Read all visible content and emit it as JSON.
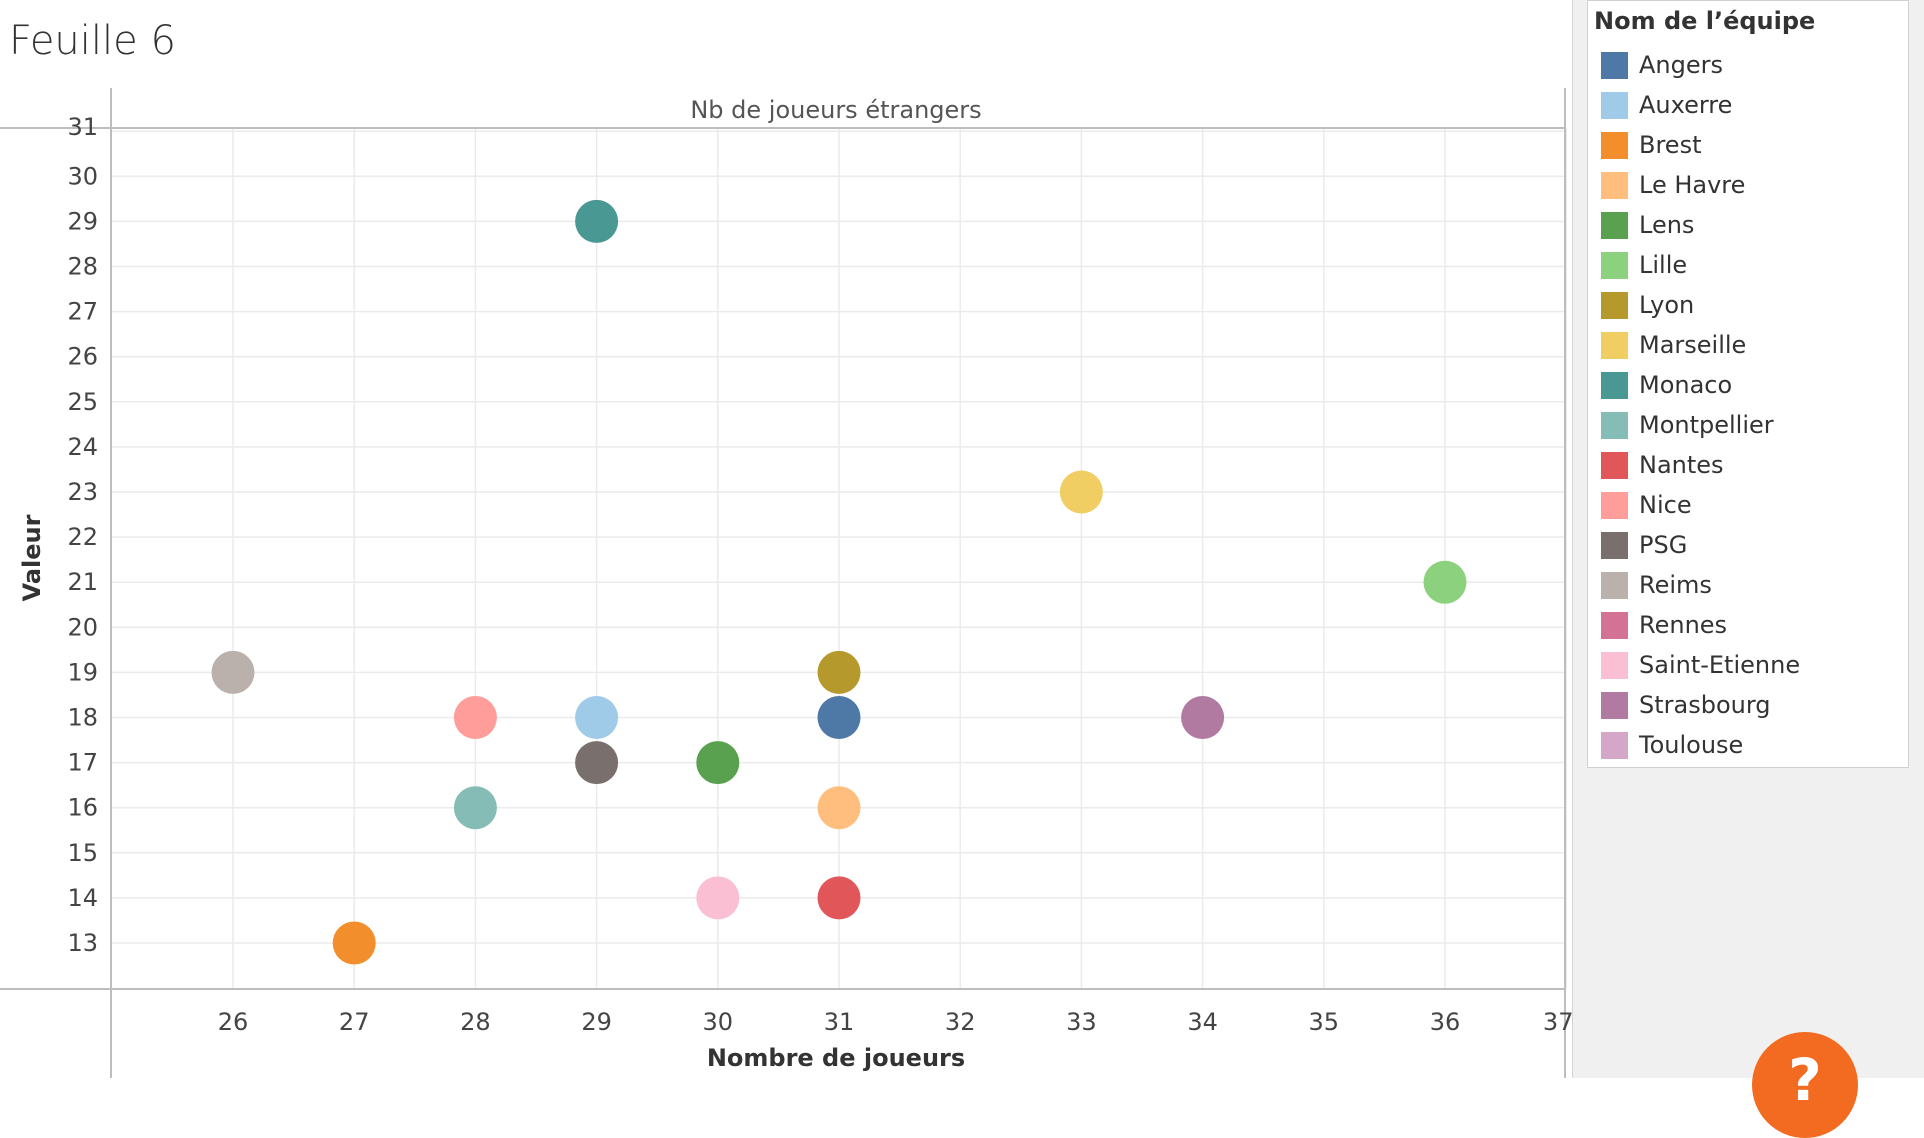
{
  "sheet": {
    "title": "Feuille 6"
  },
  "help": {
    "label": "?"
  },
  "legend": {
    "title": "Nom de l’équipe",
    "items": [
      {
        "label": "Angers",
        "color": "#4e79a7"
      },
      {
        "label": "Auxerre",
        "color": "#a0cbe8"
      },
      {
        "label": "Brest",
        "color": "#f28e2b"
      },
      {
        "label": "Le Havre",
        "color": "#ffbe7d"
      },
      {
        "label": "Lens",
        "color": "#59a14f"
      },
      {
        "label": "Lille",
        "color": "#8cd17d"
      },
      {
        "label": "Lyon",
        "color": "#b6992d"
      },
      {
        "label": "Marseille",
        "color": "#f1ce63"
      },
      {
        "label": "Monaco",
        "color": "#499894"
      },
      {
        "label": "Montpellier",
        "color": "#86bcb6"
      },
      {
        "label": "Nantes",
        "color": "#e15759"
      },
      {
        "label": "Nice",
        "color": "#ff9d9a"
      },
      {
        "label": "PSG",
        "color": "#79706e"
      },
      {
        "label": "Reims",
        "color": "#bab0ac"
      },
      {
        "label": "Rennes",
        "color": "#d37295"
      },
      {
        "label": "Saint-Etienne",
        "color": "#fabfd2"
      },
      {
        "label": "Strasbourg",
        "color": "#b07aa1"
      },
      {
        "label": "Toulouse",
        "color": "#d4a6c8"
      }
    ]
  },
  "chart_data": {
    "type": "scatter",
    "title": "Nb de joueurs étrangers",
    "xlabel": "Nombre de joueurs",
    "ylabel": "Valeur",
    "xlim": [
      25,
      37
    ],
    "ylim": [
      12,
      31
    ],
    "x_ticks": [
      26,
      27,
      28,
      29,
      30,
      31,
      32,
      33,
      34,
      35,
      36,
      37
    ],
    "y_ticks": [
      13,
      14,
      15,
      16,
      17,
      18,
      19,
      20,
      21,
      22,
      23,
      24,
      25,
      26,
      27,
      28,
      29,
      30,
      31
    ],
    "grid": true,
    "legend_position": "right",
    "points": [
      {
        "team": "Angers",
        "x": 31,
        "y": 18
      },
      {
        "team": "Auxerre",
        "x": 29,
        "y": 18
      },
      {
        "team": "Brest",
        "x": 27,
        "y": 13
      },
      {
        "team": "Le Havre",
        "x": 31,
        "y": 16
      },
      {
        "team": "Lens",
        "x": 30,
        "y": 17
      },
      {
        "team": "Lille",
        "x": 36,
        "y": 21
      },
      {
        "team": "Lyon",
        "x": 31,
        "y": 19
      },
      {
        "team": "Marseille",
        "x": 33,
        "y": 23
      },
      {
        "team": "Monaco",
        "x": 29,
        "y": 29
      },
      {
        "team": "Montpellier",
        "x": 28,
        "y": 16
      },
      {
        "team": "Nantes",
        "x": 31,
        "y": 14
      },
      {
        "team": "Nice",
        "x": 28,
        "y": 18
      },
      {
        "team": "PSG",
        "x": 29,
        "y": 17
      },
      {
        "team": "Reims",
        "x": 26,
        "y": 19
      },
      {
        "team": "Saint-Etienne",
        "x": 30,
        "y": 14
      },
      {
        "team": "Strasbourg",
        "x": 34,
        "y": 18
      }
    ]
  }
}
